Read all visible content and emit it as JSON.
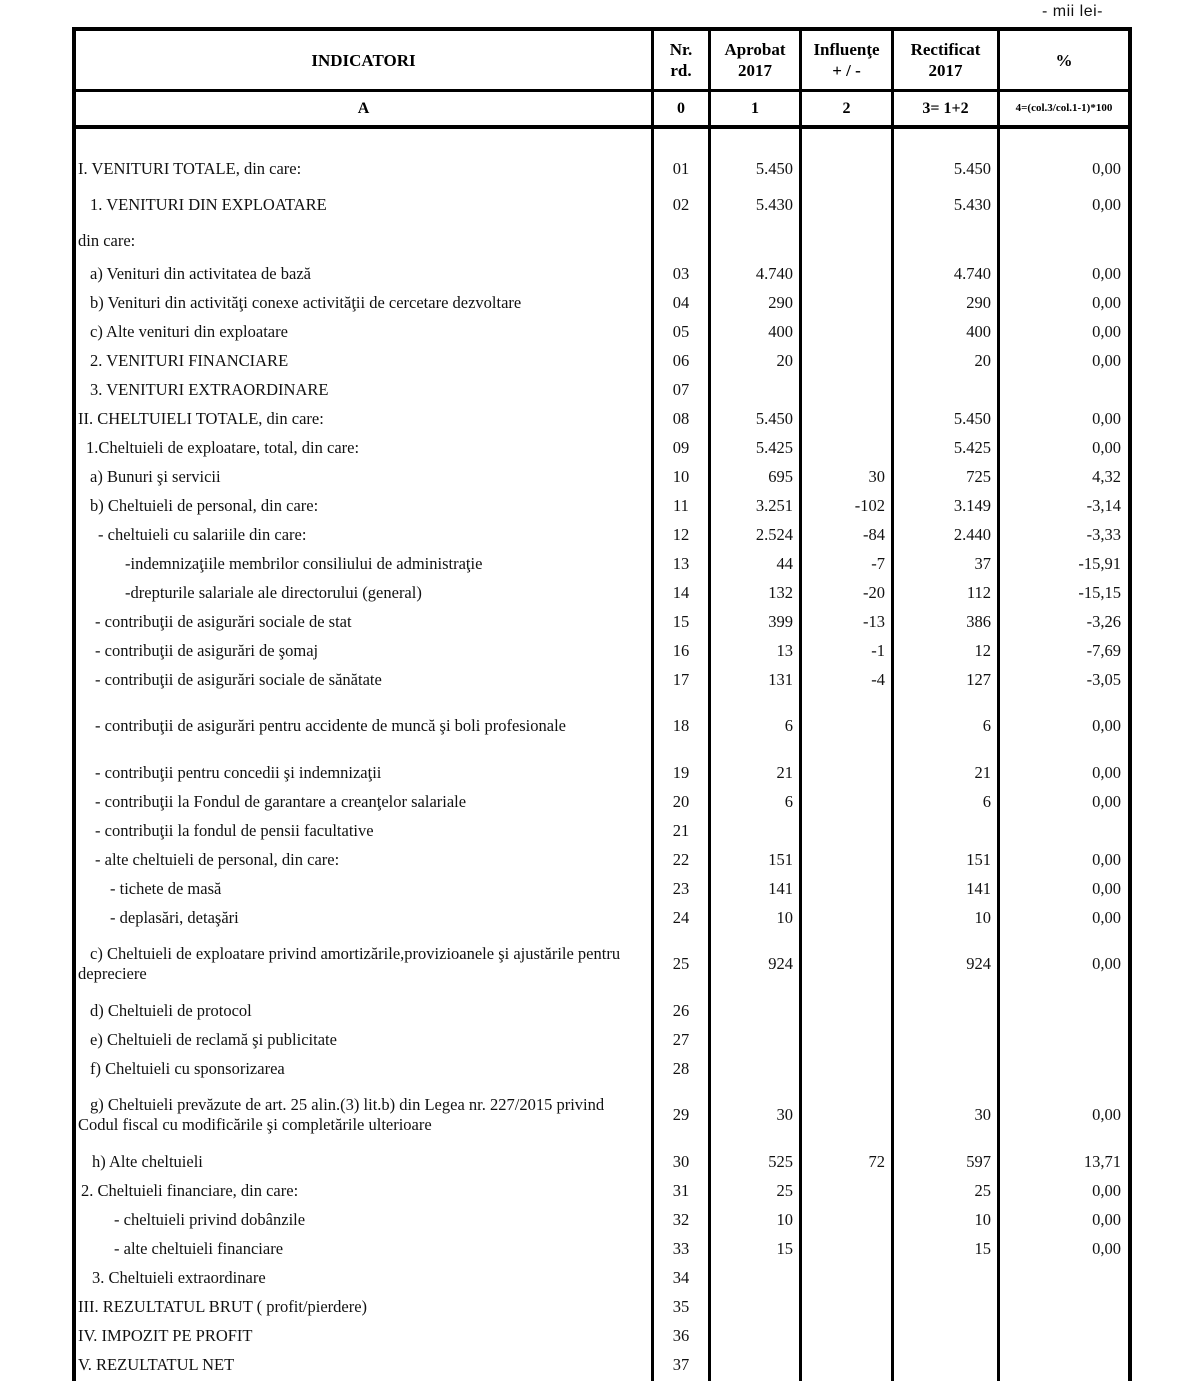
{
  "page": {
    "unit_note": "- mii lei-"
  },
  "table": {
    "columns": [
      {
        "line1": "INDICATORI",
        "line2": "",
        "sub": "A"
      },
      {
        "line1": "Nr.",
        "line2": "rd.",
        "sub": "0"
      },
      {
        "line1": "Aprobat",
        "line2": "2017",
        "sub": "1"
      },
      {
        "line1": "Influenţe",
        "line2": "+ / -",
        "sub": "2"
      },
      {
        "line1": "Rectificat",
        "line2": "2017",
        "sub": "3= 1+2"
      },
      {
        "line1": "%",
        "line2": "",
        "sub": "4=(col.3/col.1-1)*100"
      }
    ],
    "rows": [
      {
        "label": "I. VENITURI TOTALE, din care:",
        "indent": 0,
        "cls": "lead",
        "nr": "01",
        "aprobat": "5.450",
        "influente": "",
        "rectificat": "5.450",
        "procent": "0,00"
      },
      {
        "label": "1. VENITURI DIN EXPLOATARE",
        "indent": 12,
        "cls": "lead",
        "nr": "02",
        "aprobat": "5.430",
        "influente": "",
        "rectificat": "5.430",
        "procent": "0,00"
      },
      {
        "label": "din care:",
        "indent": 0,
        "cls": "lead",
        "nr": "",
        "aprobat": "",
        "influente": "",
        "rectificat": "",
        "procent": ""
      },
      {
        "label": "a) Venituri din activitatea de bază",
        "indent": 12,
        "cls": "",
        "nr": "03",
        "aprobat": "4.740",
        "influente": "",
        "rectificat": "4.740",
        "procent": "0,00"
      },
      {
        "label": "b) Venituri din activităţi conexe activităţii de cercetare dezvoltare",
        "indent": 12,
        "cls": "",
        "nr": "04",
        "aprobat": "290",
        "influente": "",
        "rectificat": "290",
        "procent": "0,00"
      },
      {
        "label": "c) Alte venituri din exploatare",
        "indent": 12,
        "cls": "",
        "nr": "05",
        "aprobat": "400",
        "influente": "",
        "rectificat": "400",
        "procent": "0,00"
      },
      {
        "label": "2. VENITURI FINANCIARE",
        "indent": 12,
        "cls": "",
        "nr": "06",
        "aprobat": "20",
        "influente": "",
        "rectificat": "20",
        "procent": "0,00"
      },
      {
        "label": "3. VENITURI EXTRAORDINARE",
        "indent": 12,
        "cls": "",
        "nr": "07",
        "aprobat": "",
        "influente": "",
        "rectificat": "",
        "procent": ""
      },
      {
        "label": "II. CHELTUIELI TOTALE, din care:",
        "indent": 0,
        "cls": "",
        "nr": "08",
        "aprobat": "5.450",
        "influente": "",
        "rectificat": "5.450",
        "procent": "0,00"
      },
      {
        "label": "1.Cheltuieli de exploatare, total, din care:",
        "indent": 8,
        "cls": "",
        "nr": "09",
        "aprobat": "5.425",
        "influente": "",
        "rectificat": "5.425",
        "procent": "0,00"
      },
      {
        "label": "a) Bunuri şi servicii",
        "indent": 12,
        "cls": "",
        "nr": "10",
        "aprobat": "695",
        "influente": "30",
        "rectificat": "725",
        "procent": "4,32"
      },
      {
        "label": "b) Cheltuieli de personal, din care:",
        "indent": 12,
        "cls": "",
        "nr": "11",
        "aprobat": "3.251",
        "influente": "-102",
        "rectificat": "3.149",
        "procent": "-3,14"
      },
      {
        "label": "- cheltuieli cu salariile din care:",
        "indent": 20,
        "cls": "",
        "nr": "12",
        "aprobat": "2.524",
        "influente": "-84",
        "rectificat": "2.440",
        "procent": "-3,33"
      },
      {
        "label": "-indemnizaţiile membrilor consiliului de administraţie",
        "indent": 47,
        "cls": "",
        "nr": "13",
        "aprobat": "44",
        "influente": "-7",
        "rectificat": "37",
        "procent": "-15,91"
      },
      {
        "label": "-drepturile salariale ale directorului (general)",
        "indent": 47,
        "cls": "",
        "nr": "14",
        "aprobat": "132",
        "influente": "-20",
        "rectificat": "112",
        "procent": "-15,15"
      },
      {
        "label": "- contribuţii de asigurări sociale de stat",
        "indent": 17,
        "cls": "",
        "nr": "15",
        "aprobat": "399",
        "influente": "-13",
        "rectificat": "386",
        "procent": "-3,26"
      },
      {
        "label": "- contribuţii de asigurări de şomaj",
        "indent": 17,
        "cls": "",
        "nr": "16",
        "aprobat": "13",
        "influente": "-1",
        "rectificat": "12",
        "procent": "-7,69"
      },
      {
        "label": "- contribuţii de asigurări sociale de sănătate",
        "indent": 17,
        "cls": "",
        "nr": "17",
        "aprobat": "131",
        "influente": "-4",
        "rectificat": "127",
        "procent": "-3,05"
      },
      {
        "label": "- contribuţii de asigurări pentru accidente de muncă şi boli profesionale",
        "indent": 17,
        "cls": "wrap",
        "nr": "18",
        "aprobat": "6",
        "influente": "",
        "rectificat": "6",
        "procent": "0,00"
      },
      {
        "label": "- contribuţii pentru concedii şi indemnizaţii",
        "indent": 17,
        "cls": "",
        "nr": "19",
        "aprobat": "21",
        "influente": "",
        "rectificat": "21",
        "procent": "0,00"
      },
      {
        "label": "- contribuţii la Fondul de garantare a creanţelor salariale",
        "indent": 17,
        "cls": "",
        "nr": "20",
        "aprobat": "6",
        "influente": "",
        "rectificat": "6",
        "procent": "0,00"
      },
      {
        "label": "- contribuţii la fondul de pensii facultative",
        "indent": 17,
        "cls": "",
        "nr": "21",
        "aprobat": "",
        "influente": "",
        "rectificat": "",
        "procent": ""
      },
      {
        "label": "- alte cheltuieli de personal, din care:",
        "indent": 17,
        "cls": "",
        "nr": "22",
        "aprobat": "151",
        "influente": "",
        "rectificat": "151",
        "procent": "0,00"
      },
      {
        "label": "- tichete de masă",
        "indent": 32,
        "cls": "",
        "nr": "23",
        "aprobat": "141",
        "influente": "",
        "rectificat": "141",
        "procent": "0,00"
      },
      {
        "label": "- deplasări, detaşări",
        "indent": 32,
        "cls": "",
        "nr": "24",
        "aprobat": "10",
        "influente": "",
        "rectificat": "10",
        "procent": "0,00"
      },
      {
        "label": "c) Cheltuieli de exploatare privind amortizările,provizioanele şi ajustările pentru depreciere",
        "indent": 12,
        "cls": "wrap",
        "nr": "25",
        "aprobat": "924",
        "influente": "",
        "rectificat": "924",
        "procent": "0,00"
      },
      {
        "label": "d) Cheltuieli de protocol",
        "indent": 12,
        "cls": "",
        "nr": "26",
        "aprobat": "",
        "influente": "",
        "rectificat": "",
        "procent": ""
      },
      {
        "label": "e) Cheltuieli de reclamă şi publicitate",
        "indent": 12,
        "cls": "",
        "nr": "27",
        "aprobat": "",
        "influente": "",
        "rectificat": "",
        "procent": ""
      },
      {
        "label": "f) Cheltuieli cu sponsorizarea",
        "indent": 12,
        "cls": "",
        "nr": "28",
        "aprobat": "",
        "influente": "",
        "rectificat": "",
        "procent": ""
      },
      {
        "label": "g) Cheltuieli prevăzute de art. 25 alin.(3) lit.b) din Legea nr. 227/2015 privind Codul fiscal cu modificările şi completările ulterioare",
        "indent": 12,
        "cls": "wrap",
        "nr": "29",
        "aprobat": "30",
        "influente": "",
        "rectificat": "30",
        "procent": "0,00"
      },
      {
        "label": "h) Alte cheltuieli",
        "indent": 14,
        "cls": "",
        "nr": "30",
        "aprobat": "525",
        "influente": "72",
        "rectificat": "597",
        "procent": "13,71"
      },
      {
        "label": "2. Cheltuieli financiare, din care:",
        "indent": 3,
        "cls": "",
        "nr": "31",
        "aprobat": "25",
        "influente": "",
        "rectificat": "25",
        "procent": "0,00"
      },
      {
        "label": "- cheltuieli privind dobânzile",
        "indent": 36,
        "cls": "",
        "nr": "32",
        "aprobat": "10",
        "influente": "",
        "rectificat": "10",
        "procent": "0,00"
      },
      {
        "label": "- alte cheltuieli financiare",
        "indent": 36,
        "cls": "",
        "nr": "33",
        "aprobat": "15",
        "influente": "",
        "rectificat": "15",
        "procent": "0,00"
      },
      {
        "label": "3. Cheltuieli extraordinare",
        "indent": 14,
        "cls": "",
        "nr": "34",
        "aprobat": "",
        "influente": "",
        "rectificat": "",
        "procent": ""
      },
      {
        "label": "III. REZULTATUL BRUT ( profit/pierdere)",
        "indent": 0,
        "cls": "",
        "nr": "35",
        "aprobat": "",
        "influente": "",
        "rectificat": "",
        "procent": ""
      },
      {
        "label": "IV. IMPOZIT PE PROFIT",
        "indent": 0,
        "cls": "",
        "nr": "36",
        "aprobat": "",
        "influente": "",
        "rectificat": "",
        "procent": ""
      },
      {
        "label": "V. REZULTATUL NET",
        "indent": 0,
        "cls": "",
        "nr": "37",
        "aprobat": "",
        "influente": "",
        "rectificat": "",
        "procent": ""
      }
    ]
  }
}
